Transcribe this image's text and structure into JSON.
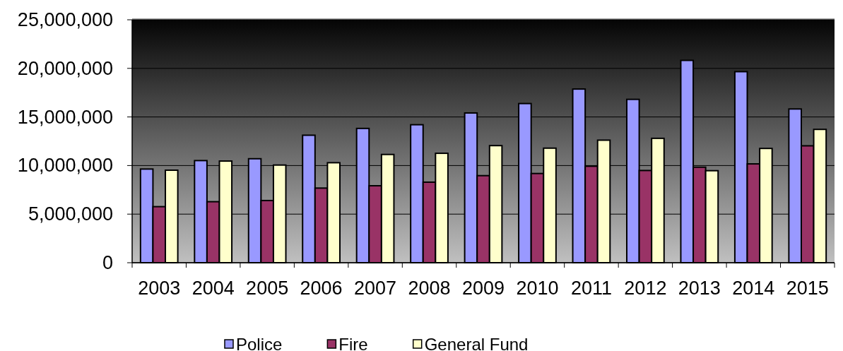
{
  "chart_data": {
    "type": "bar",
    "categories": [
      "2003",
      "2004",
      "2005",
      "2006",
      "2007",
      "2008",
      "2009",
      "2010",
      "2011",
      "2012",
      "2013",
      "2014",
      "2015"
    ],
    "series": [
      {
        "name": "Police",
        "color": "#9999ff",
        "values": [
          9640000,
          10510000,
          10700000,
          13120000,
          13820000,
          14200000,
          15410000,
          16380000,
          17870000,
          16810000,
          20820000,
          19660000,
          15820000
        ]
      },
      {
        "name": "Fire",
        "color": "#993366",
        "values": [
          5770000,
          6280000,
          6400000,
          7680000,
          7920000,
          8290000,
          8960000,
          9180000,
          9930000,
          9490000,
          9830000,
          10170000,
          12030000
        ]
      },
      {
        "name": "General Fund",
        "color": "#ffffcc",
        "values": [
          9520000,
          10460000,
          10050000,
          10290000,
          11140000,
          11260000,
          12050000,
          11790000,
          12610000,
          12800000,
          9470000,
          11760000,
          13720000
        ]
      }
    ],
    "ylim": [
      0,
      25000000
    ],
    "yticks": [
      0,
      {
        "value": 5000000,
        "label": "5,000,000"
      },
      {
        "value": 10000000,
        "label": "10,000,000"
      },
      {
        "value": 15000000,
        "label": "15,000,000"
      },
      {
        "value": 20000000,
        "label": "20,000,000"
      },
      {
        "value": 25000000,
        "label": "25,000,000"
      }
    ],
    "grid": "y",
    "legend": "bottom"
  }
}
